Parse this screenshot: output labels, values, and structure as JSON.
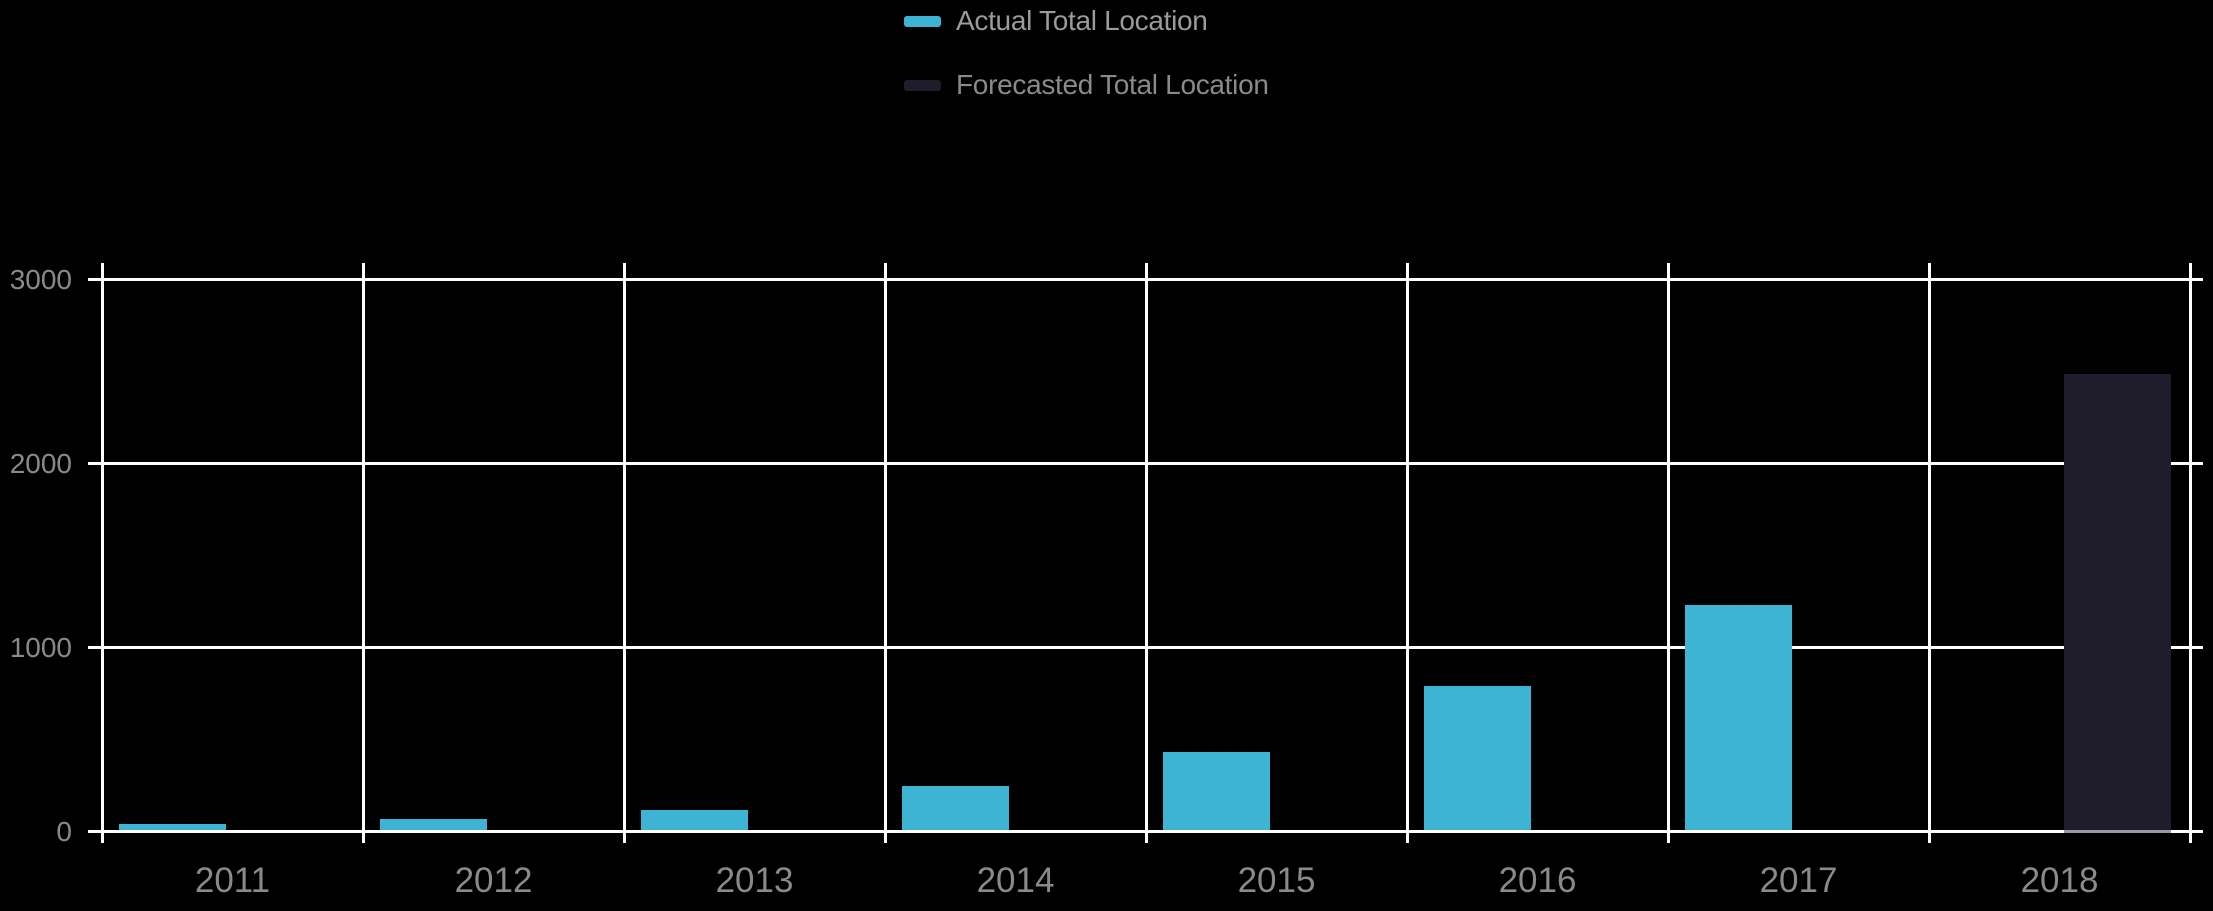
{
  "chart_data": {
    "type": "bar",
    "title": "",
    "categories": [
      "2011",
      "2012",
      "2013",
      "2014",
      "2015",
      "2016",
      "2017",
      "2018"
    ],
    "series": [
      {
        "name": "Actual Total Location",
        "color": "#3EB4D4",
        "values": [
          30,
          60,
          110,
          240,
          425,
          780,
          1225,
          null
        ]
      },
      {
        "name": "Forecasted Total Location",
        "color": "#1F1C2B",
        "values": [
          null,
          null,
          null,
          null,
          null,
          null,
          null,
          2480
        ]
      }
    ],
    "ylim": [
      0,
      3000
    ],
    "yticks": [
      0,
      1000,
      2000,
      3000
    ],
    "y_tick_labels": [
      "0",
      "1000",
      "2000",
      "3000"
    ],
    "xlabel": "",
    "ylabel": "",
    "grid": true,
    "gridline_color": "#FFFFFF",
    "background_color": "#000000",
    "tick_label_color": "#8A8A8A",
    "legend_position": "top-center"
  },
  "legend": {
    "items": [
      {
        "label": "Actual Total Location",
        "swatch_color": "#3EB4D4",
        "label_color": "#9B9B9B"
      },
      {
        "label": "Forecasted Total Location",
        "swatch_color": "#1F1C2B",
        "label_color": "#8A8A8A"
      }
    ]
  }
}
